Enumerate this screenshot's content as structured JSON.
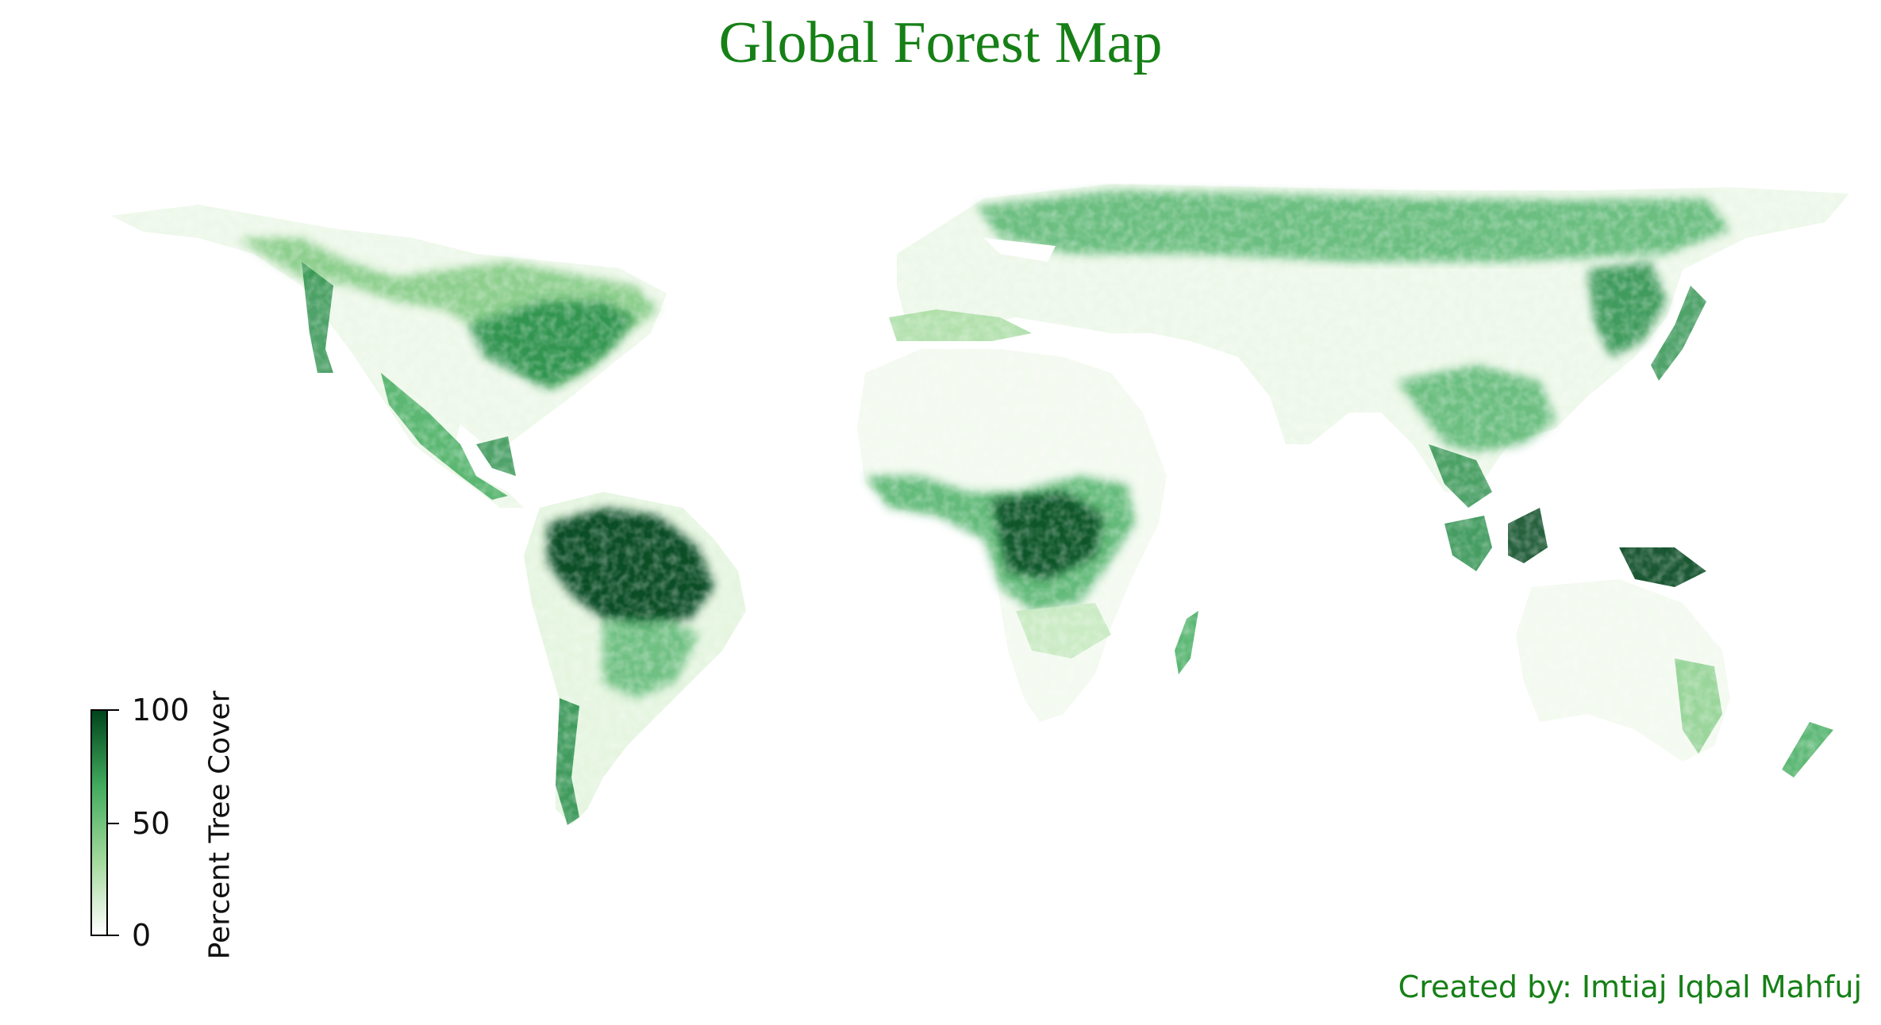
{
  "title": "Global Forest Map",
  "legend": {
    "label": "Percent Tree Cover",
    "ticks": [
      "100",
      "50",
      "0"
    ],
    "range": [
      0,
      100
    ],
    "colormap": "Greens",
    "colors": [
      "#ffffff",
      "#a1d99b",
      "#41ab5d",
      "#00441b"
    ]
  },
  "credit": "Created by: Imtiaj Iqbal Mahfuj",
  "colors": {
    "title": "#168016",
    "credit": "#168016"
  }
}
